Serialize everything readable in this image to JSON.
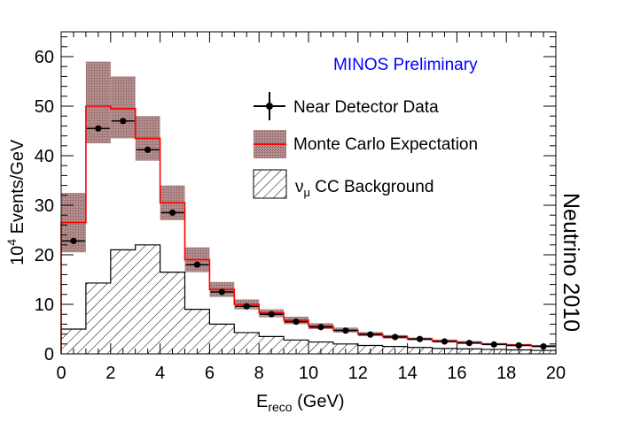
{
  "chart_data": {
    "type": "bar",
    "xlabel_main": "E",
    "xlabel_sub": "reco",
    "xlabel_unit": " (GeV)",
    "ylabel_pre": "10",
    "ylabel_sup": "4",
    "ylabel_post": " Events/GeV",
    "xlim": [
      0,
      20
    ],
    "ylim": [
      0,
      65
    ],
    "x_ticks": [
      "0",
      "2",
      "4",
      "6",
      "8",
      "10",
      "12",
      "14",
      "16",
      "18",
      "20"
    ],
    "y_ticks": [
      "0",
      "10",
      "20",
      "30",
      "40",
      "50",
      "60"
    ],
    "bin_edges": [
      0,
      1,
      2,
      3,
      4,
      5,
      6,
      7,
      8,
      9,
      10,
      11,
      12,
      13,
      14,
      15,
      16,
      17,
      18,
      19,
      20
    ],
    "series": [
      {
        "name": "Near Detector Data",
        "style": "points",
        "x": [
          0.5,
          1.5,
          2.5,
          3.5,
          4.5,
          5.5,
          6.5,
          7.5,
          8.5,
          9.5,
          10.5,
          11.5,
          12.5,
          13.5,
          14.5,
          15.5,
          16.5,
          17.5,
          18.5,
          19.5
        ],
        "values": [
          22.8,
          45.5,
          47.0,
          41.2,
          28.5,
          18.0,
          12.5,
          9.6,
          8.0,
          6.5,
          5.4,
          4.7,
          3.9,
          3.4,
          3.0,
          2.5,
          2.2,
          1.9,
          1.7,
          1.5
        ]
      },
      {
        "name": "Monte Carlo Expectation",
        "style": "step-with-band",
        "values": [
          26.5,
          50.0,
          49.5,
          43.5,
          30.5,
          19.0,
          13.0,
          10.0,
          8.3,
          6.8,
          5.6,
          4.8,
          4.0,
          3.5,
          3.0,
          2.6,
          2.3,
          2.0,
          1.8,
          1.6
        ],
        "band_low": [
          20.5,
          42.5,
          43.5,
          39.0,
          27.0,
          16.5,
          11.5,
          9.0,
          7.4,
          6.0,
          5.0,
          4.3,
          3.6,
          3.1,
          2.7,
          2.3,
          2.0,
          1.8,
          1.6,
          1.4
        ],
        "band_high": [
          32.5,
          59.0,
          56.0,
          48.0,
          34.0,
          21.5,
          14.5,
          11.0,
          9.0,
          7.5,
          6.2,
          5.3,
          4.4,
          3.8,
          3.3,
          2.9,
          2.6,
          2.2,
          2.0,
          1.8
        ]
      },
      {
        "name": "CC Background",
        "name_symbol": "ν",
        "name_symbol_sub": "μ",
        "style": "hatched-step",
        "values": [
          5.0,
          14.3,
          21.0,
          22.0,
          16.5,
          9.0,
          6.0,
          4.3,
          3.5,
          2.8,
          2.4,
          2.0,
          1.7,
          1.5,
          1.3,
          1.1,
          1.0,
          0.9,
          0.8,
          0.7
        ]
      }
    ],
    "annotation": "MINOS Preliminary",
    "annotation_color": "#0000ff",
    "side_label": "Neutrino 2010",
    "mc_color": "#ff0000",
    "band_color": "#a07878"
  }
}
